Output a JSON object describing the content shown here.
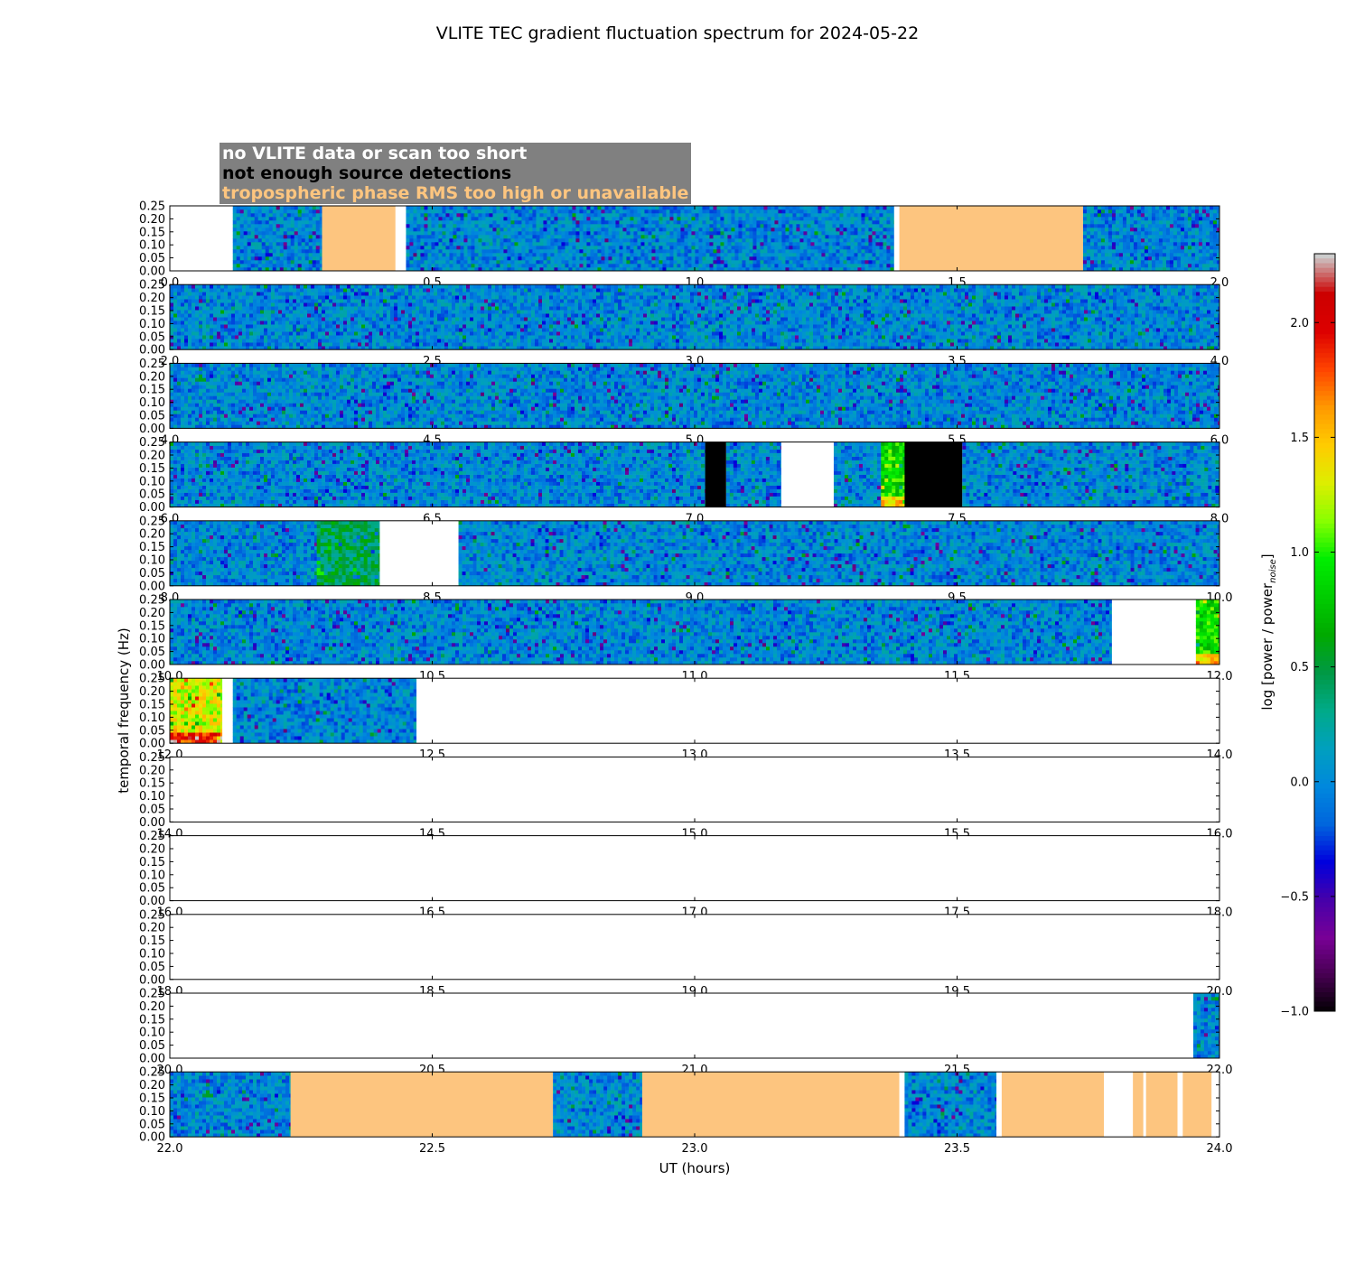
{
  "chart_data": {
    "type": "heatmap",
    "title": "VLITE TEC gradient fluctuation spectrum for 2024-05-22",
    "xlabel": "UT (hours)",
    "ylabel": "temporal frequency (Hz)",
    "ylim": [
      0,
      0.25
    ],
    "yticks": [
      "0.00",
      "0.05",
      "0.10",
      "0.15",
      "0.20",
      "0.25"
    ],
    "colorbar": {
      "label": "log [power / power",
      "label_subscript": "noise",
      "label_end": "]",
      "range": [
        -1.0,
        2.3
      ],
      "ticks": [
        "−1.0",
        "−0.5",
        "0.0",
        "0.5",
        "1.0",
        "1.5",
        "2.0"
      ],
      "tick_values": [
        -1.0,
        -0.5,
        0.0,
        0.5,
        1.0,
        1.5,
        2.0
      ],
      "colormap": "nipy_spectral"
    },
    "legend": [
      {
        "label": "no VLITE data or scan too short",
        "color": "#ffffff"
      },
      {
        "label": "not enough source detections",
        "color": "#000000"
      },
      {
        "label": "tropospheric phase RMS too high or unavailable",
        "color": "#fdc57f"
      }
    ],
    "rows": [
      {
        "start": 0,
        "end": 2,
        "ticks": [
          "0.0",
          "0.5",
          "1.0",
          "1.5",
          "2.0"
        ],
        "segments": [
          {
            "start": 0.0,
            "end": 0.12,
            "state": "no_data"
          },
          {
            "start": 0.12,
            "end": 0.29,
            "state": "data"
          },
          {
            "start": 0.29,
            "end": 0.43,
            "state": "tropo"
          },
          {
            "start": 0.43,
            "end": 0.45,
            "state": "no_data"
          },
          {
            "start": 0.45,
            "end": 1.38,
            "state": "data"
          },
          {
            "start": 1.38,
            "end": 1.39,
            "state": "no_data"
          },
          {
            "start": 1.39,
            "end": 1.74,
            "state": "tropo"
          },
          {
            "start": 1.74,
            "end": 2.0,
            "state": "data"
          }
        ]
      },
      {
        "start": 2,
        "end": 4,
        "ticks": [
          "2.0",
          "2.5",
          "3.0",
          "3.5",
          "4.0"
        ],
        "segments": [
          {
            "start": 2.0,
            "end": 4.0,
            "state": "data"
          }
        ]
      },
      {
        "start": 4,
        "end": 6,
        "ticks": [
          "4.0",
          "4.5",
          "5.0",
          "5.5",
          "6.0"
        ],
        "segments": [
          {
            "start": 4.0,
            "end": 6.0,
            "state": "data"
          }
        ]
      },
      {
        "start": 6,
        "end": 8,
        "ticks": [
          "6.0",
          "6.5",
          "7.0",
          "7.5",
          "8.0"
        ],
        "segments": [
          {
            "start": 6.0,
            "end": 7.02,
            "state": "data"
          },
          {
            "start": 7.02,
            "end": 7.06,
            "state": "few_src"
          },
          {
            "start": 7.06,
            "end": 7.165,
            "state": "data"
          },
          {
            "start": 7.165,
            "end": 7.265,
            "state": "no_data"
          },
          {
            "start": 7.265,
            "end": 7.355,
            "state": "data"
          },
          {
            "start": 7.355,
            "end": 7.4,
            "state": "data",
            "level": 0.9
          },
          {
            "start": 7.4,
            "end": 7.51,
            "state": "few_src"
          },
          {
            "start": 7.51,
            "end": 8.0,
            "state": "data"
          }
        ]
      },
      {
        "start": 8,
        "end": 10,
        "ticks": [
          "8.0",
          "8.5",
          "9.0",
          "9.5",
          "10.0"
        ],
        "segments": [
          {
            "start": 8.0,
            "end": 8.28,
            "state": "data"
          },
          {
            "start": 8.28,
            "end": 8.4,
            "state": "data",
            "level": 0.45
          },
          {
            "start": 8.4,
            "end": 8.55,
            "state": "no_data"
          },
          {
            "start": 8.55,
            "end": 10.0,
            "state": "data"
          }
        ]
      },
      {
        "start": 10,
        "end": 12,
        "ticks": [
          "10.0",
          "10.5",
          "11.0",
          "11.5",
          "12.0"
        ],
        "segments": [
          {
            "start": 10.0,
            "end": 11.795,
            "state": "data"
          },
          {
            "start": 11.795,
            "end": 11.955,
            "state": "no_data"
          },
          {
            "start": 11.955,
            "end": 12.0,
            "state": "data",
            "level": 0.9
          }
        ]
      },
      {
        "start": 12,
        "end": 14,
        "ticks": [
          "12.0",
          "12.5",
          "13.0",
          "13.5",
          "14.0"
        ],
        "segments": [
          {
            "start": 12.0,
            "end": 12.1,
            "state": "data",
            "level": 1.3
          },
          {
            "start": 12.1,
            "end": 12.12,
            "state": "no_data"
          },
          {
            "start": 12.12,
            "end": 12.47,
            "state": "data"
          },
          {
            "start": 12.47,
            "end": 14.0,
            "state": "no_data"
          }
        ]
      },
      {
        "start": 14,
        "end": 16,
        "ticks": [
          "14.0",
          "14.5",
          "15.0",
          "15.5",
          "16.0"
        ],
        "segments": [
          {
            "start": 14.0,
            "end": 16.0,
            "state": "no_data"
          }
        ]
      },
      {
        "start": 16,
        "end": 18,
        "ticks": [
          "16.0",
          "16.5",
          "17.0",
          "17.5",
          "18.0"
        ],
        "segments": [
          {
            "start": 16.0,
            "end": 18.0,
            "state": "no_data"
          }
        ]
      },
      {
        "start": 18,
        "end": 20,
        "ticks": [
          "18.0",
          "18.5",
          "19.0",
          "19.5",
          "20.0"
        ],
        "segments": [
          {
            "start": 18.0,
            "end": 20.0,
            "state": "no_data"
          }
        ]
      },
      {
        "start": 20,
        "end": 22,
        "ticks": [
          "20.0",
          "20.5",
          "21.0",
          "21.5",
          "22.0"
        ],
        "segments": [
          {
            "start": 20.0,
            "end": 21.95,
            "state": "no_data"
          },
          {
            "start": 21.95,
            "end": 22.0,
            "state": "data"
          }
        ]
      },
      {
        "start": 22,
        "end": 24,
        "ticks": [
          "22.0",
          "22.5",
          "23.0",
          "23.5",
          "24.0"
        ],
        "segments": [
          {
            "start": 22.0,
            "end": 22.23,
            "state": "data"
          },
          {
            "start": 22.23,
            "end": 22.73,
            "state": "tropo"
          },
          {
            "start": 22.73,
            "end": 22.9,
            "state": "data"
          },
          {
            "start": 22.9,
            "end": 23.39,
            "state": "tropo"
          },
          {
            "start": 23.39,
            "end": 23.4,
            "state": "no_data"
          },
          {
            "start": 23.4,
            "end": 23.575,
            "state": "data"
          },
          {
            "start": 23.575,
            "end": 23.585,
            "state": "no_data"
          },
          {
            "start": 23.585,
            "end": 23.78,
            "state": "tropo"
          },
          {
            "start": 23.78,
            "end": 23.835,
            "state": "no_data"
          },
          {
            "start": 23.835,
            "end": 23.855,
            "state": "tropo"
          },
          {
            "start": 23.855,
            "end": 23.86,
            "state": "no_data"
          },
          {
            "start": 23.86,
            "end": 23.92,
            "state": "tropo"
          },
          {
            "start": 23.92,
            "end": 23.93,
            "state": "no_data"
          },
          {
            "start": 23.93,
            "end": 23.985,
            "state": "tropo"
          },
          {
            "start": 23.985,
            "end": 24.0,
            "state": "no_data"
          }
        ]
      }
    ]
  }
}
